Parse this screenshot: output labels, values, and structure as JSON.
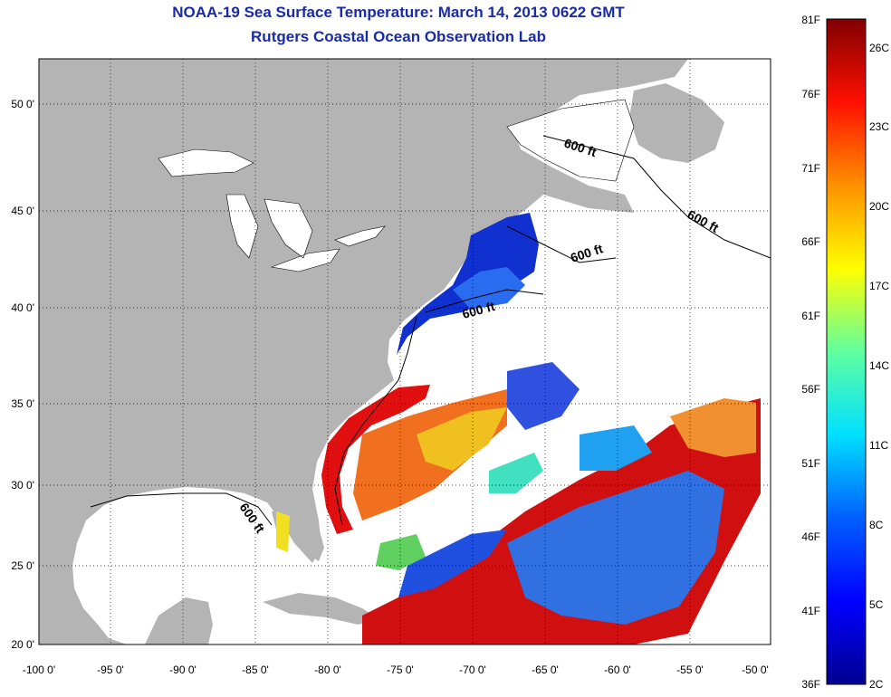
{
  "title": {
    "line1": "NOAA-19 Sea Surface Temperature:  March 14, 2013 0622 GMT",
    "line2": "Rutgers Coastal Ocean Observation Lab"
  },
  "map": {
    "lon_range": [
      -100,
      -50
    ],
    "lat_range": [
      20,
      52.5
    ],
    "lon_ticks": [
      "-100 0'",
      "-95 0'",
      "-90 0'",
      "-85 0'",
      "-80 0'",
      "-75 0'",
      "-70 0'",
      "-65 0'",
      "-60 0'",
      "-55 0'",
      "-50 0'"
    ],
    "lat_ticks": [
      "20 0'",
      "25 0'",
      "30 0'",
      "35 0'",
      "40 0'",
      "45 0'",
      "50 0'"
    ],
    "contour_labels": [
      "600 ft",
      "600 ft",
      "600 ft",
      "600 ft",
      "600 ft"
    ],
    "land_color": "#b4b4b4",
    "water_color": "#ffffff",
    "grid": "dotted"
  },
  "colorbar": {
    "fahrenheit": [
      "81F",
      "76F",
      "71F",
      "66F",
      "61F",
      "56F",
      "51F",
      "46F",
      "41F",
      "36F"
    ],
    "celsius": [
      "26C",
      "23C",
      "20C",
      "17C",
      "14C",
      "11C",
      "8C",
      "5C",
      "2C"
    ],
    "colors": [
      "#00008f",
      "#0000ff",
      "#0080ff",
      "#00ffff",
      "#80ff80",
      "#ffff00",
      "#ff8000",
      "#ff0000",
      "#800000"
    ]
  }
}
